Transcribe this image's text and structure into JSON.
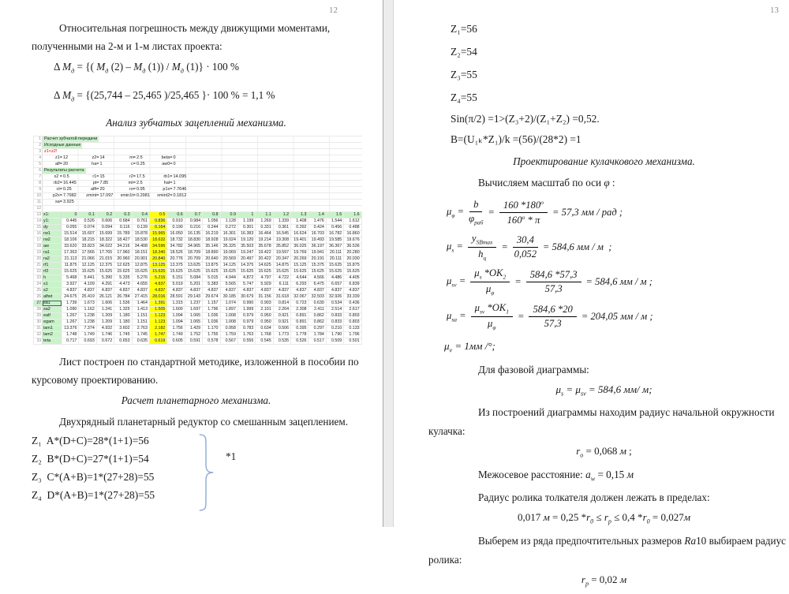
{
  "colors": {
    "highlight_green": "#c9f3c9",
    "highlight_yellow": "#ffff00",
    "warning_red": "#e60000",
    "brace_blue": "#8ea9d8"
  },
  "page12": {
    "page_number": "12",
    "intro": [
      "Относительная погрешность между движущими моментами,",
      "полученными на 2-м и 1-м листах проекта:"
    ],
    "delta1": "Δ ¤М~д~¤ = {( ¤М~д~¤ (2) – ¤М~д~¤ (1)) /  ¤М~д~¤ (1)} · 100 %",
    "delta2": "Δ ¤М~д~¤ = {(25,744 – 25,465 )/25,465  }· 100 % = 1,1 %",
    "heading1": "Анализ зубчатых зацеплений механизма.",
    "after_table": [
      "Лист построен по стандартной методике, изложенной в пособии по",
      "курсовому проектированию."
    ],
    "heading2": "Расчет планетарного механизма.",
    "reducer": "Двухрядный планетарный редуктор со смешанным зацеплением.",
    "z_lines": [
      "Z₁  A*(D+C)=28*(1+1)=56",
      "Z₂  B*(D+C)=27*(1+1)=54",
      "Z₃  C*(A+B)=1*(27+28)=55",
      "Z₄  D*(A+B)=1*(27+28)=55"
    ],
    "star_note": "*1"
  },
  "spreadsheet": {
    "selected_row": "27",
    "selected_label": "sa1",
    "highlight_col": 5,
    "top_rows": [
      {
        "n": "1",
        "type": "title",
        "text": "Расчет зубчатой передачи"
      },
      {
        "n": "2",
        "type": "title",
        "text": "Исходные данные"
      },
      {
        "n": "3",
        "type": "title",
        "cls": "red",
        "text": "z1<z2!"
      },
      {
        "n": "4",
        "type": "pairs",
        "cells": [
          "z1=",
          "12",
          "z2=",
          "14",
          "m=",
          "2.5",
          "beta=",
          "0"
        ]
      },
      {
        "n": "5",
        "type": "pairs",
        "cells": [
          "alf=",
          "20",
          "ha=",
          "1",
          "c=",
          "0.25",
          "aw0=",
          "0"
        ]
      },
      {
        "n": "6",
        "type": "title",
        "text": "Результаты расчета"
      },
      {
        "n": "7",
        "type": "pairs",
        "cells": [
          "x2 =",
          "0.5",
          "r1=",
          "15",
          "r2=",
          "17.5",
          "rb1=",
          "14.095"
        ]
      },
      {
        "n": "8",
        "type": "pairs",
        "cells": [
          "rb2=",
          "16.445",
          "pt=",
          "7.85",
          "mt=",
          "2.5",
          "hat=",
          "1"
        ]
      },
      {
        "n": "9",
        "type": "pairs",
        "cells": [
          "ct=",
          "0.25",
          "alft=",
          "20",
          "ro=",
          "0.95",
          "p1x=",
          "7.7646"
        ]
      },
      {
        "n": "10",
        "type": "pairs",
        "cells": [
          "p2x=",
          "7.7982",
          "zmint=",
          "17.097",
          "xmin1t=",
          "0.2981",
          "xmint2=",
          "0.1812"
        ]
      },
      {
        "n": "11",
        "type": "pairs",
        "cells": [
          "sa=",
          "3.925"
        ]
      },
      {
        "n": "12",
        "type": "pairs",
        "cells": []
      }
    ],
    "header_row": {
      "n": "13",
      "label": "x1:",
      "values": [
        "0",
        "0.1",
        "0.2",
        "0.3",
        "0.4",
        "0.5",
        "0.6",
        "0.7",
        "0.8",
        "0.9",
        "1",
        "1.1",
        "1.2",
        "1.3",
        "1.4",
        "1.5",
        "1.6"
      ]
    },
    "data_rows": [
      {
        "n": "14",
        "label": "y1:",
        "values": [
          "0.445",
          "0.526",
          "0.606",
          "0.684",
          "0.761",
          "0.836",
          "0.910",
          "0.984",
          "1.056",
          "1.128",
          "1.199",
          "1.269",
          "1.339",
          "1.408",
          "1.476",
          "1.544",
          "1.612"
        ]
      },
      {
        "n": "15",
        "label": "dy",
        "values": [
          "0.055",
          "0.074",
          "0.094",
          "0.116",
          "0.139",
          "0.164",
          "0.190",
          "0.216",
          "0.244",
          "0.272",
          "0.301",
          "0.331",
          "0.361",
          "0.392",
          "0.424",
          "0.456",
          "0.488"
        ]
      },
      {
        "n": "16",
        "label": "rw1",
        "values": [
          "15.514",
          "15.607",
          "15.699",
          "15.789",
          "15.878",
          "15.965",
          "16.050",
          "16.135",
          "16.219",
          "16.301",
          "16.383",
          "16.464",
          "16.545",
          "16.624",
          "16.703",
          "16.782",
          "16.860"
        ]
      },
      {
        "n": "17",
        "label": "rw2",
        "values": [
          "18.106",
          "18.215",
          "18.322",
          "18.427",
          "18.530",
          "18.632",
          "18.732",
          "18.830",
          "18.928",
          "19.024",
          "19.120",
          "19.214",
          "19.308",
          "19.401",
          "19.493",
          "19.585",
          "19.676"
        ]
      },
      {
        "n": "18",
        "label": "aw",
        "values": [
          "33.620",
          "33.823",
          "34.022",
          "34.216",
          "34.408",
          "34.596",
          "34.782",
          "34.965",
          "35.146",
          "35.325",
          "35.503",
          "35.678",
          "35.852",
          "36.025",
          "36.197",
          "36.367",
          "36.536"
        ]
      },
      {
        "n": "19",
        "label": "ra1",
        "values": [
          "17.363",
          "17.566",
          "17.765",
          "17.960",
          "18.151",
          "18.340",
          "18.526",
          "18.709",
          "18.890",
          "19.069",
          "19.247",
          "19.422",
          "19.597",
          "19.769",
          "19.941",
          "20.111",
          "20.280"
        ]
      },
      {
        "n": "20",
        "label": "ra2",
        "values": [
          "21.113",
          "21.066",
          "21.015",
          "20.960",
          "20.901",
          "20.840",
          "20.776",
          "20.709",
          "20.640",
          "20.569",
          "20.497",
          "20.422",
          "20.347",
          "20.269",
          "20.191",
          "20.111",
          "20.030"
        ]
      },
      {
        "n": "21",
        "label": "rf1",
        "values": [
          "11.875",
          "12.125",
          "12.375",
          "12.625",
          "12.875",
          "13.125",
          "13.375",
          "13.625",
          "13.875",
          "14.125",
          "14.375",
          "14.625",
          "14.875",
          "15.125",
          "15.375",
          "15.625",
          "15.875"
        ]
      },
      {
        "n": "22",
        "label": "rf2",
        "values": [
          "15.625",
          "15.625",
          "15.625",
          "15.625",
          "15.625",
          "15.625",
          "15.625",
          "15.625",
          "15.625",
          "15.625",
          "15.625",
          "15.625",
          "15.625",
          "15.625",
          "15.625",
          "15.625",
          "15.625"
        ]
      },
      {
        "n": "23",
        "label": "h",
        "values": [
          "5.468",
          "5.441",
          "5.390",
          "5.335",
          "5.276",
          "5.215",
          "5.151",
          "5.084",
          "5.015",
          "4.944",
          "4.872",
          "4.797",
          "4.722",
          "4.644",
          "4.566",
          "4.486",
          "4.405"
        ]
      },
      {
        "n": "24",
        "label": "s1",
        "values": [
          "3.927",
          "4.109",
          "4.291",
          "4.473",
          "4.655",
          "4.837",
          "5.019",
          "5.201",
          "5.383",
          "5.565",
          "5.747",
          "5.929",
          "6.111",
          "6.293",
          "6.475",
          "6.657",
          "6.839"
        ]
      },
      {
        "n": "25",
        "label": "s2",
        "values": [
          "4.837",
          "4.837",
          "4.837",
          "4.837",
          "4.837",
          "4.837",
          "4.837",
          "4.837",
          "4.837",
          "4.837",
          "4.837",
          "4.837",
          "4.837",
          "4.837",
          "4.837",
          "4.837",
          "4.837"
        ]
      },
      {
        "n": "26",
        "label": "alfwt",
        "values": [
          "24.675",
          "25.419",
          "26.121",
          "26.784",
          "27.415",
          "28.016",
          "28.591",
          "29.143",
          "29.674",
          "30.185",
          "30.679",
          "31.156",
          "31.618",
          "32.067",
          "32.503",
          "32.926",
          "33.339"
        ]
      },
      {
        "n": "27",
        "label": "sa1",
        "values": [
          "1.739",
          "1.673",
          "1.606",
          "1.536",
          "1.464",
          "1.391",
          "1.315",
          "1.237",
          "1.157",
          "1.074",
          "0.990",
          "0.903",
          "0.814",
          "0.723",
          "0.630",
          "0.534",
          "0.436"
        ]
      },
      {
        "n": "28",
        "label": "sa2",
        "values": [
          "1.090",
          "1.162",
          "1.241",
          "1.325",
          "1.413",
          "1.505",
          "1.600",
          "1.697",
          "1.796",
          "1.897",
          "1.999",
          "2.101",
          "2.204",
          "2.308",
          "2.411",
          "2.514",
          "2.617"
        ]
      },
      {
        "n": "29",
        "label": "ealf",
        "values": [
          "1.267",
          "1.238",
          "1.209",
          "1.180",
          "1.151",
          "1.123",
          "1.094",
          "1.065",
          "1.036",
          "1.008",
          "0.979",
          "0.950",
          "0.921",
          "0.891",
          "0.862",
          "0.833",
          "0.803"
        ]
      },
      {
        "n": "30",
        "label": "egam",
        "values": [
          "1.267",
          "1.238",
          "1.209",
          "1.180",
          "1.151",
          "1.123",
          "1.094",
          "1.065",
          "1.036",
          "1.008",
          "0.979",
          "0.950",
          "0.921",
          "0.891",
          "0.862",
          "0.833",
          "0.803"
        ]
      },
      {
        "n": "31",
        "label": "lam1",
        "values": [
          "13.376",
          "7.374",
          "4.932",
          "3.602",
          "2.763",
          "2.182",
          "1.756",
          "1.429",
          "1.170",
          "0.958",
          "0.783",
          "0.634",
          "0.506",
          "0.395",
          "0.297",
          "0.210",
          "0.133"
        ]
      },
      {
        "n": "32",
        "label": "lam2",
        "values": [
          "1.748",
          "1.749",
          "1.746",
          "1.745",
          "1.745",
          "1.747",
          "1.749",
          "1.752",
          "1.755",
          "1.759",
          "1.763",
          "1.768",
          "1.773",
          "1.778",
          "1.784",
          "1.790",
          "1.796"
        ]
      },
      {
        "n": "33",
        "label": "teta",
        "values": [
          "0.717",
          "0.693",
          "0.672",
          "0.653",
          "0.635",
          "0.619",
          "0.605",
          "0.591",
          "0.578",
          "0.567",
          "0.556",
          "0.545",
          "0.535",
          "0.526",
          "0.517",
          "0.509",
          "0.501"
        ]
      }
    ]
  },
  "page13": {
    "page_number": "13",
    "z_values": [
      "Z₁=56",
      "Z₂=54",
      "Z₃=55",
      "Z₄=55"
    ],
    "sin_line": "Sin(π/2) =1>(Z₃+2)/(Z₁+Z₂) =0,52.",
    "b_line": "B=(U₁ₖ*Z₁)/k =(56)/(28*2) =1",
    "heading": "Проектирование кулачкового механизма.",
    "calc_line": "Вычисляем масштаб по оси ¤φ¤ :",
    "formulas": [
      [
        {
          "t": "text",
          "v": "¤μ~φ~¤ ="
        },
        {
          "t": "frac",
          "n": "¤b¤",
          "d": "¤φ~раб~¤"
        },
        {
          "t": "text",
          "v": "="
        },
        {
          "t": "frac",
          "n": "160 *180^о^",
          "d": "160^о^ * ¤π¤"
        },
        {
          "t": "text",
          "v": "= 57,3 ¤мм / рад¤ ;"
        }
      ],
      [
        {
          "t": "text",
          "v": "¤μ~s~¤ ="
        },
        {
          "t": "frac",
          "n": "¤y~SBmax~¤",
          "d": "¤h~ц~¤"
        },
        {
          "t": "text",
          "v": "="
        },
        {
          "t": "frac",
          "n": "30,4",
          "d": "0,052"
        },
        {
          "t": "text",
          "v": "= 584,6 ¤мм / м¤  ;"
        }
      ],
      [
        {
          "t": "text",
          "v": "¤μ~sv~¤ ="
        },
        {
          "t": "frac",
          "n": "¤μ~s~¤ *¤OK~2~¤",
          "d": "¤μ~φ~¤"
        },
        {
          "t": "text",
          "v": "="
        },
        {
          "t": "frac",
          "n": "584,6 *57,3",
          "d": "57,3"
        },
        {
          "t": "text",
          "v": "= 584,6 ¤мм / м¤ ;"
        }
      ],
      [
        {
          "t": "text",
          "v": "¤μ~sa~¤ ="
        },
        {
          "t": "frac",
          "n": "¤μ~sv~¤ *¤OK~1~¤",
          "d": "¤μ~φ~¤"
        },
        {
          "t": "text",
          "v": "="
        },
        {
          "t": "frac",
          "n": "584,6 *20",
          "d": "57,3"
        },
        {
          "t": "text",
          "v": "= 204,05 ¤мм / м¤ ;"
        }
      ]
    ],
    "mu_v_line": "¤μ~v~¤ = 1¤мм /¤°;",
    "phase_label": "Для фазовой диаграммы:",
    "phase_eq": "¤μ~s~¤ = ¤μ~sv~¤ = 584,6 ¤мм/ м¤;",
    "r0_para": [
      "Из построений диаграммы находим радиус начальной окружности",
      "кулачка:"
    ],
    "r0_eq": "¤r~о~¤ = 0,068 ¤м¤ ;",
    "aw_line": "Межосевое расстояние:  ¤a~w~¤ = 0,15 ¤м¤",
    "roller_label": "Радиус ролика толкателя должен лежать в пределах:",
    "roller_eq": "0,017 ¤м¤ = 0,25 *¤r~0~¤ ≤ ¤r~р~¤ ≤ 0,4 *¤r~0~¤ = 0,027¤м¤",
    "ra_para": [
      "Выберем из ряда предпочтительных размеров  ¤Ra¤10  выбираем радиус",
      "ролика:"
    ],
    "rp_eq": "¤r~р~¤ = 0,02 ¤м¤"
  }
}
